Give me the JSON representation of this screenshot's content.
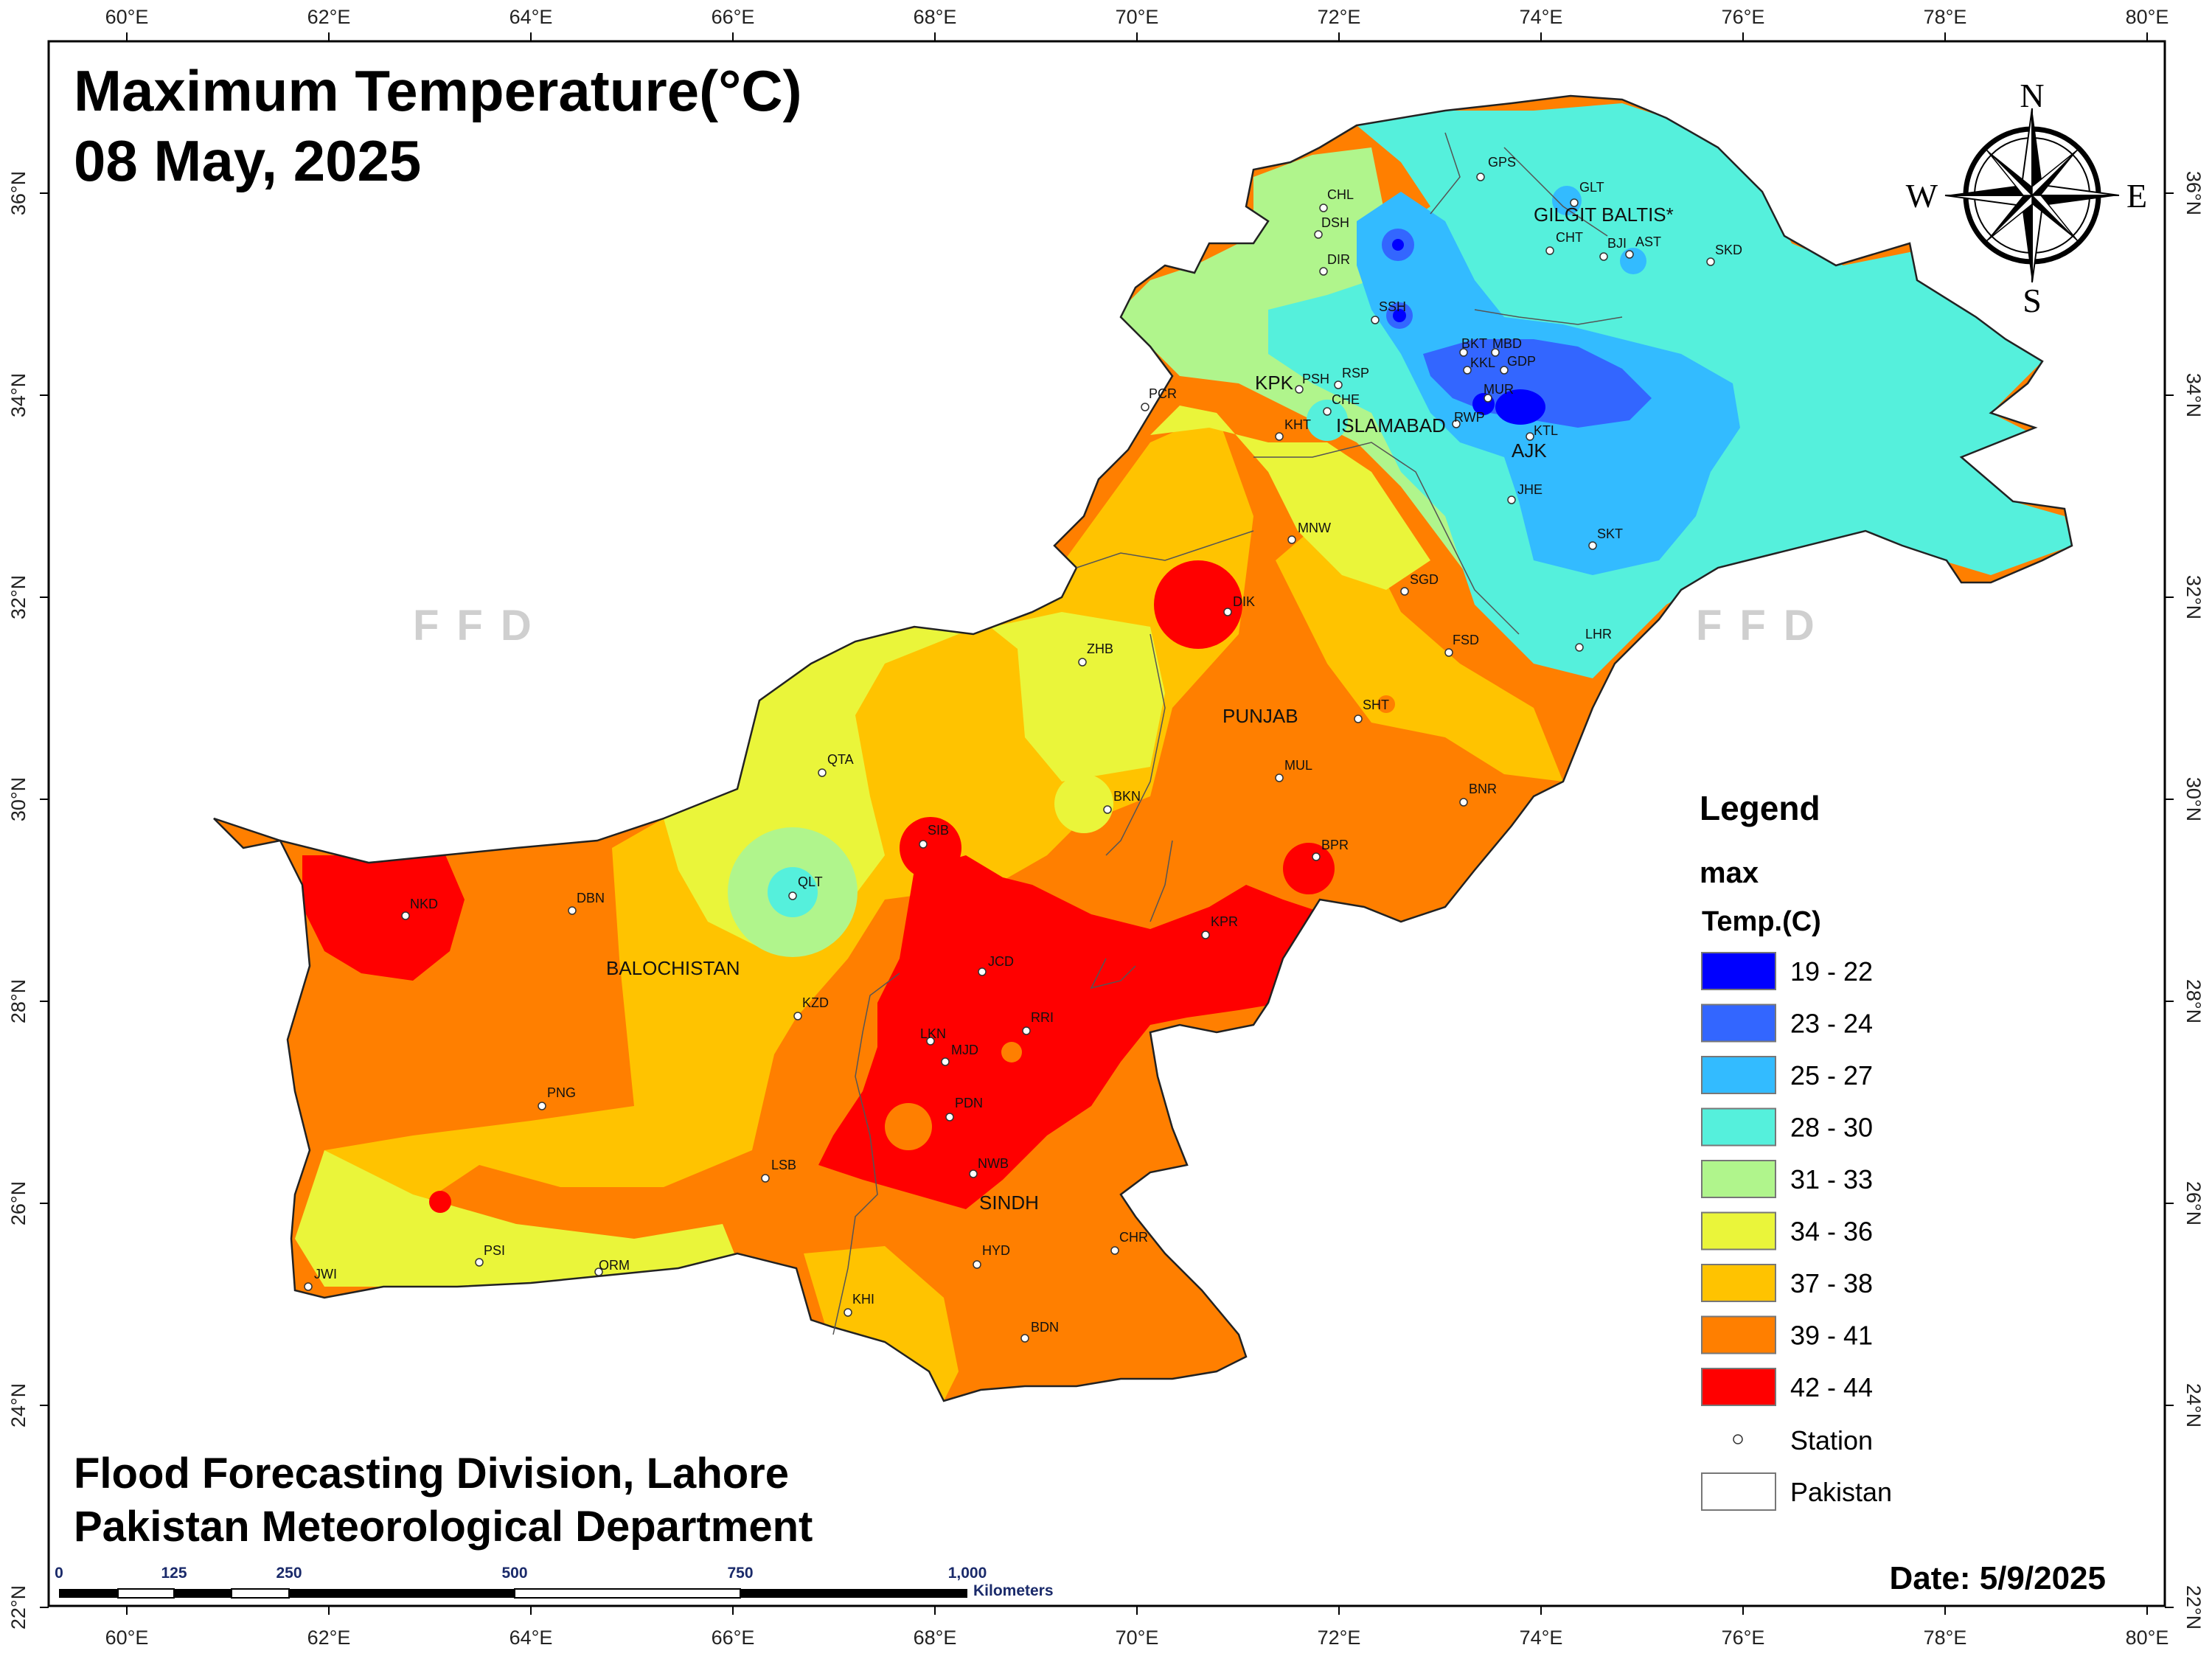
{
  "title": {
    "line1": "Maximum Temperature(°C)",
    "line2": "08 May, 2025"
  },
  "credits": {
    "line1": "Flood Forecasting Division, Lahore",
    "line2": "Pakistan Meteorological Department"
  },
  "date_label": "Date: 5/9/2025",
  "watermark": "FFD",
  "axes": {
    "longitude_ticks": [
      "60°E",
      "62°E",
      "64°E",
      "66°E",
      "68°E",
      "70°E",
      "72°E",
      "74°E",
      "76°E",
      "78°E",
      "80°E"
    ],
    "latitude_ticks": [
      "36°N",
      "34°N",
      "32°N",
      "30°N",
      "28°N",
      "26°N",
      "24°N",
      "22°N"
    ]
  },
  "compass": {
    "n": "N",
    "s": "S",
    "e": "E",
    "w": "W"
  },
  "legend": {
    "heading": "Legend",
    "field": "max",
    "unit": "Temp.(C)",
    "classes": [
      {
        "label": "19 - 22",
        "color": "#0000ff"
      },
      {
        "label": "23 - 24",
        "color": "#3366ff"
      },
      {
        "label": "25 - 27",
        "color": "#33bbff"
      },
      {
        "label": "28 - 30",
        "color": "#55f0dc"
      },
      {
        "label": "31 - 33",
        "color": "#b0f58c"
      },
      {
        "label": "34 - 36",
        "color": "#eaf53a"
      },
      {
        "label": "37 - 38",
        "color": "#ffc300"
      },
      {
        "label": "39 - 41",
        "color": "#ff7f00"
      },
      {
        "label": "42 - 44",
        "color": "#ff0000"
      }
    ],
    "station_label": "Station",
    "boundary_label": "Pakistan"
  },
  "scale_bar": {
    "ticks": [
      "0",
      "125",
      "250",
      "500",
      "750",
      "1,000"
    ],
    "unit": "Kilometers"
  },
  "regions": [
    "GILGIT BALTIS*",
    "KPK",
    "ISLAMABAD",
    "AJK",
    "PUNJAB",
    "BALOCHISTAN",
    "SINDH"
  ],
  "stations": [
    "GPS",
    "GLT",
    "CHL",
    "DSH",
    "CHT",
    "BJI",
    "AST",
    "SKD",
    "DIR",
    "SSH",
    "BKT",
    "MBD",
    "KKL",
    "GDP",
    "PCR",
    "PSH",
    "RSP",
    "CHE",
    "MUR",
    "KHT",
    "RWP",
    "KTL",
    "JHE",
    "SKT",
    "MNW",
    "SGD",
    "DIK",
    "LHR",
    "ZHB",
    "FSD",
    "SHT",
    "QTA",
    "MUL",
    "BNR",
    "BKN",
    "SIB",
    "BPR",
    "QLT",
    "NKD",
    "DBN",
    "KPR",
    "JCD",
    "KZD",
    "RRI",
    "LKN",
    "MJD",
    "PDN",
    "PNG",
    "LSB",
    "NWB",
    "PSI",
    "ORM",
    "JWI",
    "CHR",
    "HYD",
    "KHI",
    "BDN"
  ]
}
